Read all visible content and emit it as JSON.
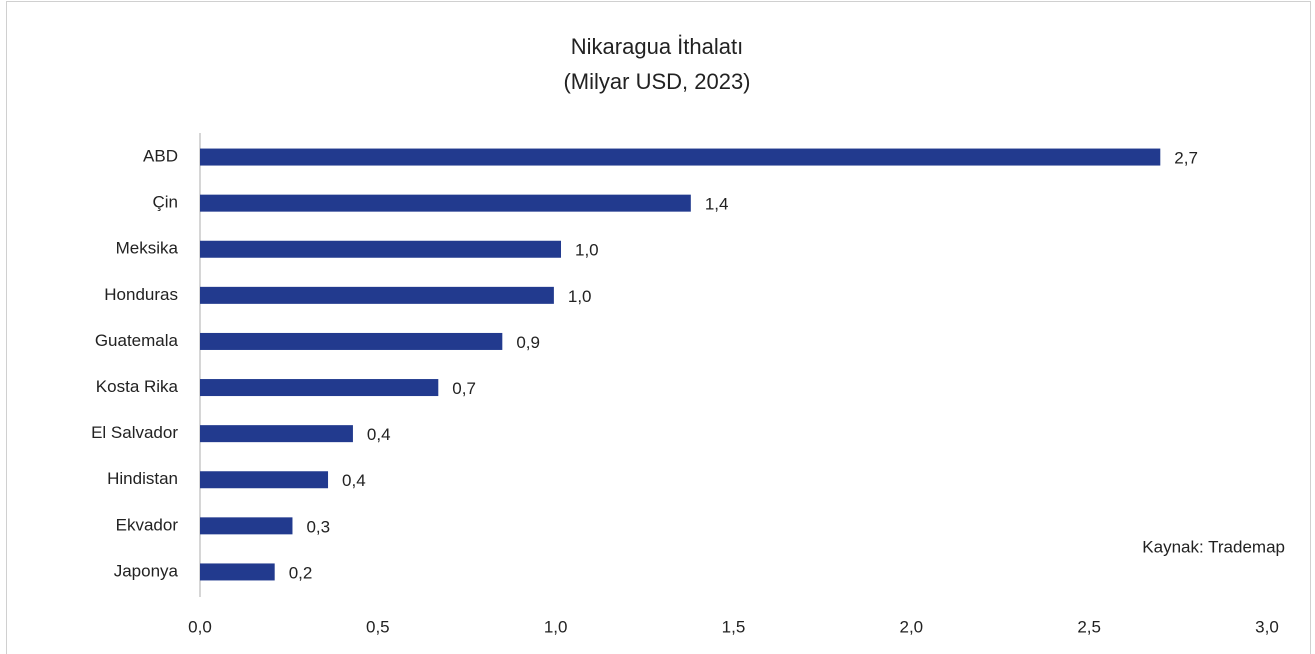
{
  "chart_data": {
    "type": "hbar",
    "title": "Nikaragua İthalatı",
    "subtitle": "(Milyar USD, 2023)",
    "categories": [
      "ABD",
      "Çin",
      "Meksika",
      "Honduras",
      "Guatemala",
      "Kosta Rika",
      "El Salvador",
      "Hindistan",
      "Ekvador",
      "Japonya"
    ],
    "values": [
      2.7,
      1.38,
      1.015,
      0.995,
      0.85,
      0.67,
      0.43,
      0.36,
      0.26,
      0.21
    ],
    "value_labels": [
      "2,7",
      "1,4",
      "1,0",
      "1,0",
      "0,9",
      "0,7",
      "0,4",
      "0,4",
      "0,3",
      "0,2"
    ],
    "color": "#223a8e",
    "xlim": [
      0,
      3
    ],
    "xticks": [
      {
        "value": 0,
        "label": "0,0"
      },
      {
        "value": 0.5,
        "label": "0,5"
      },
      {
        "value": 1,
        "label": "1,0"
      },
      {
        "value": 1.5,
        "label": "1,5"
      },
      {
        "value": 2,
        "label": "2,0"
      },
      {
        "value": 2.5,
        "label": "2,5"
      },
      {
        "value": 3,
        "label": "3,0"
      }
    ],
    "grid": false,
    "annotation": "Kaynak: Trademap"
  }
}
